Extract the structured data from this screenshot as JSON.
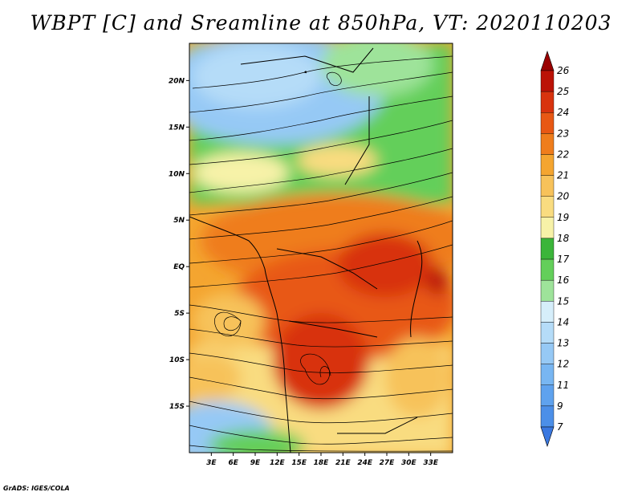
{
  "title": "WBPT [C] and Sreamline at 850hPa, VT: 2020110203",
  "footer": "GrADS: IGES/COLA",
  "map": {
    "lon_range": [
      0,
      36
    ],
    "lat_range": [
      -20,
      24
    ],
    "lon_ticks": [
      "3E",
      "6E",
      "9E",
      "12E",
      "15E",
      "18E",
      "21E",
      "24E",
      "27E",
      "30E",
      "33E"
    ],
    "lat_ticks": [
      "20N",
      "15N",
      "10N",
      "5N",
      "EQ",
      "5S",
      "10S",
      "15S"
    ]
  },
  "colorbar": {
    "levels": [
      "7",
      "9",
      "11",
      "12",
      "13",
      "14",
      "15",
      "16",
      "17",
      "18",
      "19",
      "20",
      "21",
      "22",
      "23",
      "24",
      "25",
      "26"
    ],
    "colors": [
      "#3a78e0",
      "#4c8fe8",
      "#5fa2ee",
      "#78b6f2",
      "#96c9f5",
      "#b5dcf8",
      "#d6eefa",
      "#9ee39a",
      "#63cf5a",
      "#3bb53a",
      "#f7f2a8",
      "#f9dc80",
      "#f7c25a",
      "#f4a530",
      "#ef7d1c",
      "#e85814",
      "#d8330e",
      "#bb1207",
      "#9a0000"
    ]
  }
}
